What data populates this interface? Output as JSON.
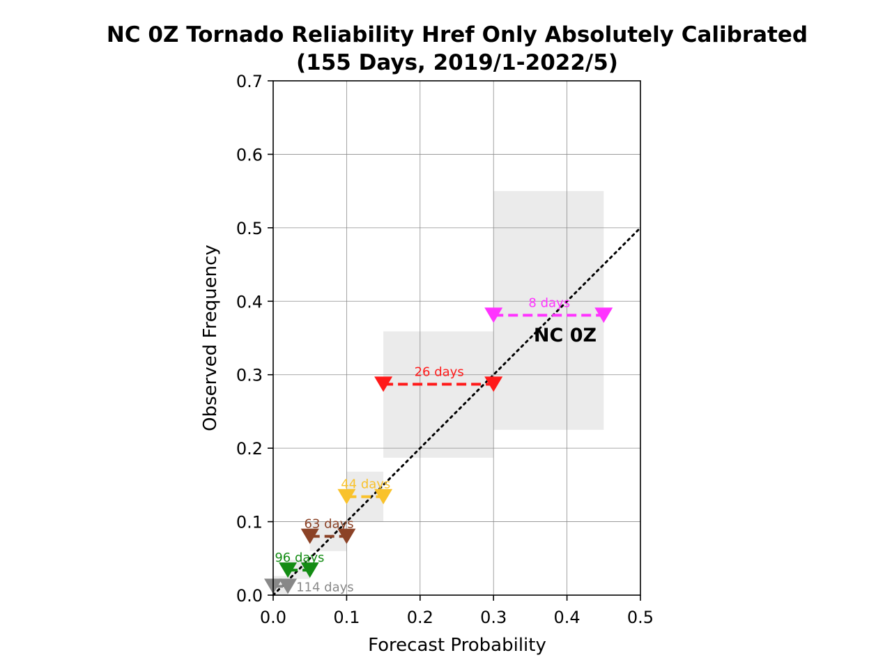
{
  "chart_data": {
    "type": "scatter",
    "title": [
      "NC 0Z Tornado Reliability Href Only Absolutely Calibrated",
      "(155 Days, 2019/1-2022/5)"
    ],
    "xlabel": "Forecast Probability",
    "ylabel": "Observed Frequency",
    "xlim": [
      0.0,
      0.5
    ],
    "ylim": [
      0.0,
      0.7
    ],
    "xticks": [
      "0.0",
      "0.1",
      "0.2",
      "0.3",
      "0.4",
      "0.5"
    ],
    "yticks": [
      "0.0",
      "0.1",
      "0.2",
      "0.3",
      "0.4",
      "0.5",
      "0.6",
      "0.7"
    ],
    "grid": true,
    "region_label": "NC 0Z",
    "reference_line": {
      "style": "dotted",
      "color": "#000000",
      "x": [
        0.0,
        0.5
      ],
      "y": [
        0.0,
        0.5
      ]
    },
    "bins": [
      {
        "label": "114 days",
        "x_range": [
          0.0,
          0.02
        ],
        "y": 0.012,
        "ci": [
          0.0,
          0.026
        ],
        "color": "#888888"
      },
      {
        "label": "96 days",
        "x_range": [
          0.02,
          0.05
        ],
        "y": 0.034,
        "ci": [
          0.022,
          0.048
        ],
        "color": "#138c13"
      },
      {
        "label": "63 days",
        "x_range": [
          0.05,
          0.1
        ],
        "y": 0.08,
        "ci": [
          0.06,
          0.1
        ],
        "color": "#8b4226"
      },
      {
        "label": "44 days",
        "x_range": [
          0.1,
          0.15
        ],
        "y": 0.134,
        "ci": [
          0.1,
          0.168
        ],
        "color": "#f9c22b"
      },
      {
        "label": "26 days",
        "x_range": [
          0.15,
          0.3
        ],
        "y": 0.287,
        "ci": [
          0.187,
          0.359
        ],
        "color": "#ff1a1a"
      },
      {
        "label": "8 days",
        "x_range": [
          0.3,
          0.45
        ],
        "y": 0.381,
        "ci": [
          0.225,
          0.55
        ],
        "color": "#ff33ff"
      }
    ]
  }
}
